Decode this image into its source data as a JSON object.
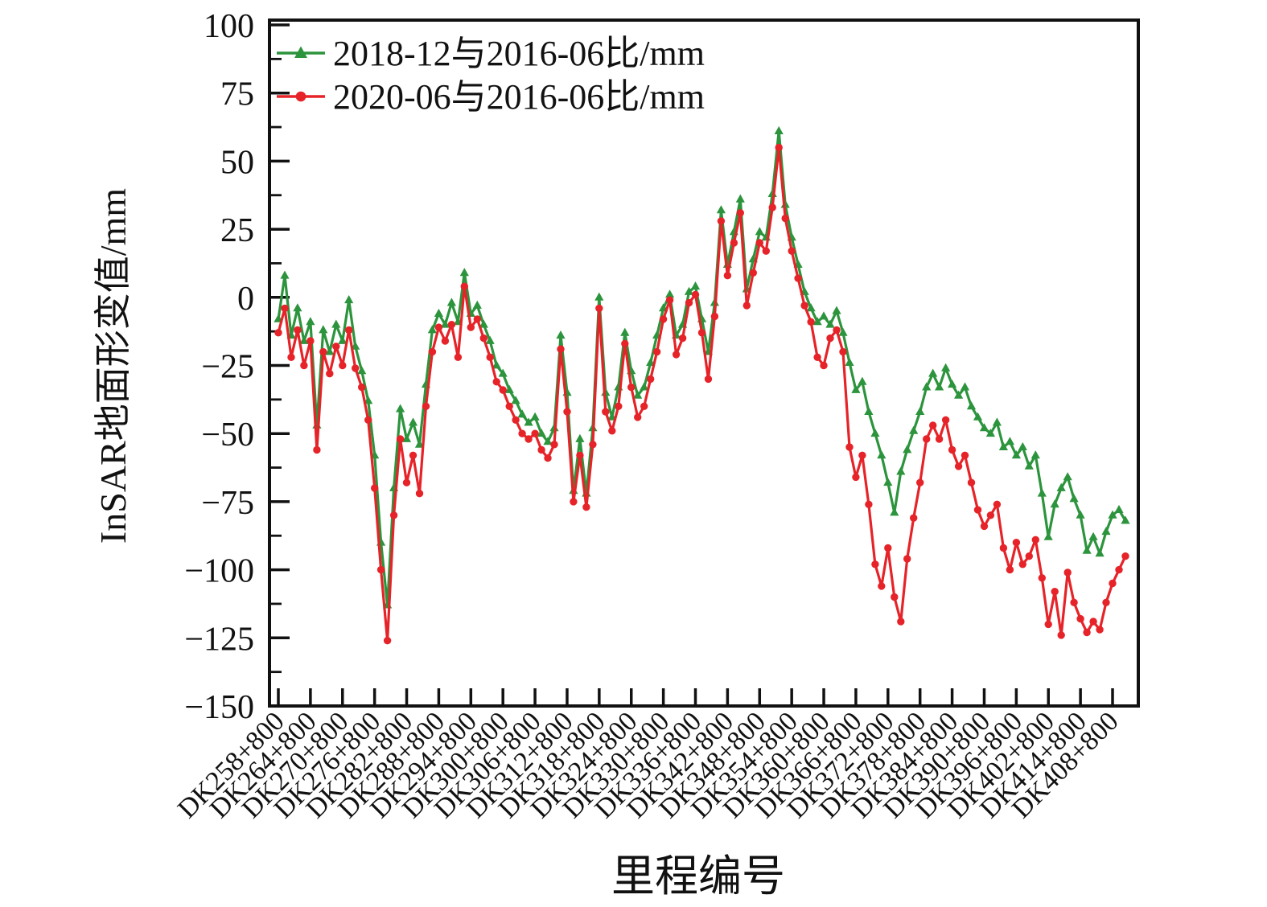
{
  "page": {
    "background": "#ffffff"
  },
  "chart_data": {
    "type": "line",
    "title": "",
    "xlabel": "里程编号",
    "ylabel": "InSAR地面形变值/mm",
    "grid": false,
    "legend_position": "top-left-inside",
    "frame_color": "#111111",
    "x_axis": {
      "tick_labels": [
        "DK258+800",
        "DK264+800",
        "DK270+800",
        "DK276+800",
        "DK282+800",
        "DK288+800",
        "DK294+800",
        "DK300+800",
        "DK306+800",
        "DK312+800",
        "DK318+800",
        "DK324+800",
        "DK330+800",
        "DK336+800",
        "DK342+800",
        "DK348+800",
        "DK354+800",
        "DK360+800",
        "DK366+800",
        "DK372+800",
        "DK378+800",
        "DK384+800",
        "DK390+800",
        "DK396+800",
        "DK402+800",
        "DK414+800",
        "DK408+800"
      ],
      "tick_label_rotation_deg": 45,
      "sample_step": 0.2,
      "note": "series sampled in tick-index units; index 0 = DK258+800, 1 tick = 6 km mileage"
    },
    "y_axis": {
      "ticks": [
        100,
        75,
        50,
        25,
        0,
        -25,
        -50,
        -75,
        -100,
        -125,
        -150
      ],
      "minor_tick_step": 12.5,
      "lim": [
        -150,
        102
      ]
    },
    "series": [
      {
        "name": "2018-12与2016-06比/mm",
        "color": "#2c943c",
        "marker": "triangle-up",
        "values": [
          -8,
          8,
          -14,
          -4,
          -16,
          -9,
          -47,
          -12,
          -20,
          -10,
          -16,
          -1,
          -18,
          -27,
          -38,
          -58,
          -90,
          -113,
          -70,
          -41,
          -52,
          -46,
          -54,
          -32,
          -12,
          -6,
          -10,
          -2,
          -9,
          9,
          -6,
          -3,
          -10,
          -16,
          -25,
          -28,
          -34,
          -38,
          -43,
          -46,
          -44,
          -50,
          -53,
          -48,
          -14,
          -35,
          -71,
          -52,
          -72,
          -48,
          0,
          -35,
          -44,
          -33,
          -13,
          -27,
          -36,
          -33,
          -24,
          -14,
          -4,
          1,
          -14,
          -10,
          2,
          4,
          -8,
          -20,
          -2,
          32,
          12,
          24,
          36,
          3,
          14,
          24,
          22,
          38,
          61,
          34,
          22,
          12,
          2,
          -4,
          -9,
          -7,
          -10,
          -5,
          -13,
          -24,
          -34,
          -31,
          -42,
          -50,
          -58,
          -68,
          -79,
          -64,
          -56,
          -49,
          -42,
          -33,
          -28,
          -33,
          -26,
          -32,
          -36,
          -33,
          -40,
          -44,
          -48,
          -50,
          -46,
          -55,
          -53,
          -58,
          -55,
          -62,
          -58,
          -72,
          -88,
          -76,
          -70,
          -66,
          -74,
          -80,
          -93,
          -88,
          -94,
          -86,
          -80,
          -78,
          -82
        ]
      },
      {
        "name": "2020-06与2016-06比/mm",
        "color": "#e62328",
        "marker": "circle",
        "values": [
          -13,
          -4,
          -22,
          -12,
          -25,
          -16,
          -56,
          -20,
          -28,
          -18,
          -25,
          -12,
          -26,
          -33,
          -45,
          -70,
          -100,
          -126,
          -80,
          -52,
          -68,
          -58,
          -72,
          -40,
          -20,
          -11,
          -16,
          -10,
          -22,
          4,
          -11,
          -8,
          -15,
          -22,
          -31,
          -34,
          -40,
          -45,
          -50,
          -52,
          -50,
          -56,
          -59,
          -54,
          -19,
          -42,
          -75,
          -58,
          -77,
          -54,
          -4,
          -42,
          -49,
          -40,
          -17,
          -33,
          -44,
          -40,
          -30,
          -20,
          -8,
          -1,
          -21,
          -15,
          -2,
          1,
          -13,
          -30,
          -7,
          28,
          8,
          20,
          31,
          -3,
          9,
          20,
          17,
          33,
          55,
          29,
          17,
          7,
          -3,
          -9,
          -22,
          -25,
          -15,
          -12,
          -20,
          -55,
          -66,
          -58,
          -76,
          -98,
          -106,
          -92,
          -110,
          -119,
          -96,
          -81,
          -68,
          -52,
          -47,
          -52,
          -45,
          -56,
          -62,
          -58,
          -68,
          -78,
          -84,
          -80,
          -76,
          -92,
          -100,
          -90,
          -98,
          -95,
          -89,
          -103,
          -120,
          -108,
          -124,
          -101,
          -112,
          -118,
          -123,
          -119,
          -122,
          -112,
          -105,
          -100,
          -95
        ]
      }
    ]
  }
}
